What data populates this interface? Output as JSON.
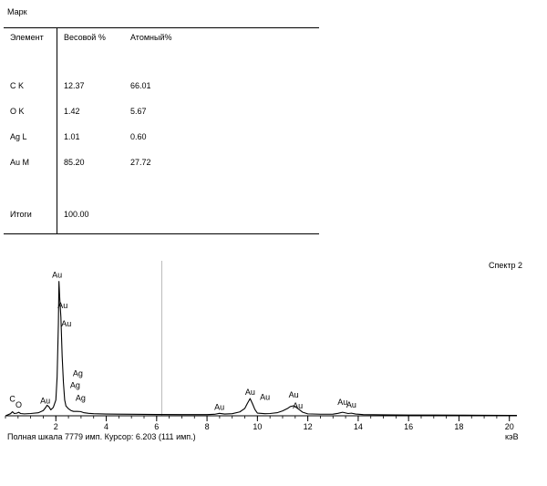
{
  "header": {
    "title": "Марк"
  },
  "table": {
    "columns": [
      "Элемент",
      "Весовой %",
      "Атомный%"
    ],
    "rows": [
      [
        "C K",
        "12.37",
        "66.01"
      ],
      [
        "O K",
        "1.42",
        "5.67"
      ],
      [
        "Ag L",
        "1.01",
        "0.60"
      ],
      [
        "Au M",
        "85.20",
        "27.72"
      ]
    ],
    "total": [
      "Итоги",
      "100.00"
    ]
  },
  "spectrum": {
    "spectrum_label": "Спектр 2",
    "footer_text": "Полная шкала 7779 имп. Курсор: 6.203  (111 имп.)",
    "unit_label": "кэВ"
  },
  "chart_data": {
    "type": "line",
    "title": "",
    "xlabel": "кэВ",
    "ylabel": "",
    "xlim": [
      0,
      20.3
    ],
    "ylim": [
      0,
      7779
    ],
    "x_ticks": [
      2,
      4,
      6,
      8,
      10,
      12,
      14,
      16,
      18,
      20
    ],
    "cursor_x": 6.203,
    "cursor_counts": 111,
    "full_scale_counts": 7779,
    "series": [
      {
        "x": [
          0,
          0.1,
          0.2,
          0.277,
          0.35,
          0.45,
          0.525,
          0.6,
          0.75,
          1.0,
          1.3,
          1.5,
          1.6,
          1.65,
          1.72,
          1.8,
          1.9,
          2.0,
          2.05,
          2.1,
          2.123,
          2.15,
          2.2,
          2.25,
          2.3,
          2.35,
          2.4,
          2.5,
          2.6,
          2.7,
          2.85,
          2.98,
          3.1,
          3.3,
          3.5,
          4.0,
          5.0,
          6.0,
          7.0,
          8.0,
          8.3,
          8.49,
          8.7,
          9.0,
          9.3,
          9.5,
          9.6,
          9.71,
          9.8,
          9.9,
          10.0,
          10.3,
          10.5,
          10.8,
          11.0,
          11.2,
          11.3,
          11.44,
          11.6,
          11.8,
          12.0,
          12.5,
          13.0,
          13.2,
          13.38,
          13.6,
          13.73,
          13.9,
          14.2,
          15.0,
          16.0,
          17.0,
          18.0,
          19.0,
          20.0,
          20.3
        ],
        "y": [
          0,
          60,
          120,
          230,
          130,
          150,
          200,
          130,
          110,
          130,
          170,
          300,
          480,
          600,
          520,
          340,
          480,
          900,
          2200,
          5200,
          7640,
          6800,
          5600,
          3400,
          1900,
          900,
          560,
          400,
          300,
          250,
          250,
          240,
          180,
          140,
          120,
          100,
          85,
          75,
          70,
          70,
          85,
          140,
          100,
          120,
          220,
          420,
          700,
          980,
          700,
          360,
          150,
          120,
          130,
          180,
          280,
          420,
          520,
          570,
          420,
          200,
          110,
          90,
          95,
          140,
          200,
          130,
          150,
          100,
          70,
          55,
          45,
          40,
          35,
          30,
          25,
          20
        ]
      }
    ],
    "peak_labels": [
      {
        "label": "C",
        "x": 0.277,
        "y": 230
      },
      {
        "label": "O",
        "x": 0.525,
        "y": 200
      },
      {
        "label": "Au",
        "x": 1.65,
        "y": 600
      },
      {
        "label": "Au",
        "x": 2.123,
        "y": 7640
      },
      {
        "label": "Au",
        "x": 2.2,
        "y": 5600
      },
      {
        "label": "Ag",
        "x": 2.98,
        "y": 240
      },
      {
        "label": "Ag",
        "x": 2.98,
        "y": 240
      },
      {
        "label": "Ag",
        "x": 2.98,
        "y": 240
      },
      {
        "label": "Au",
        "x": 2.2,
        "y": 5600
      },
      {
        "label": "Au",
        "x": 8.49,
        "y": 140
      },
      {
        "label": "Au",
        "x": 9.71,
        "y": 980
      },
      {
        "label": "Au",
        "x": 10.3,
        "y": 120
      },
      {
        "label": "Au",
        "x": 11.44,
        "y": 570
      },
      {
        "label": "Au",
        "x": 11.6,
        "y": 420
      },
      {
        "label": "Au",
        "x": 13.38,
        "y": 200
      },
      {
        "label": "Au",
        "x": 13.73,
        "y": 150
      }
    ]
  }
}
